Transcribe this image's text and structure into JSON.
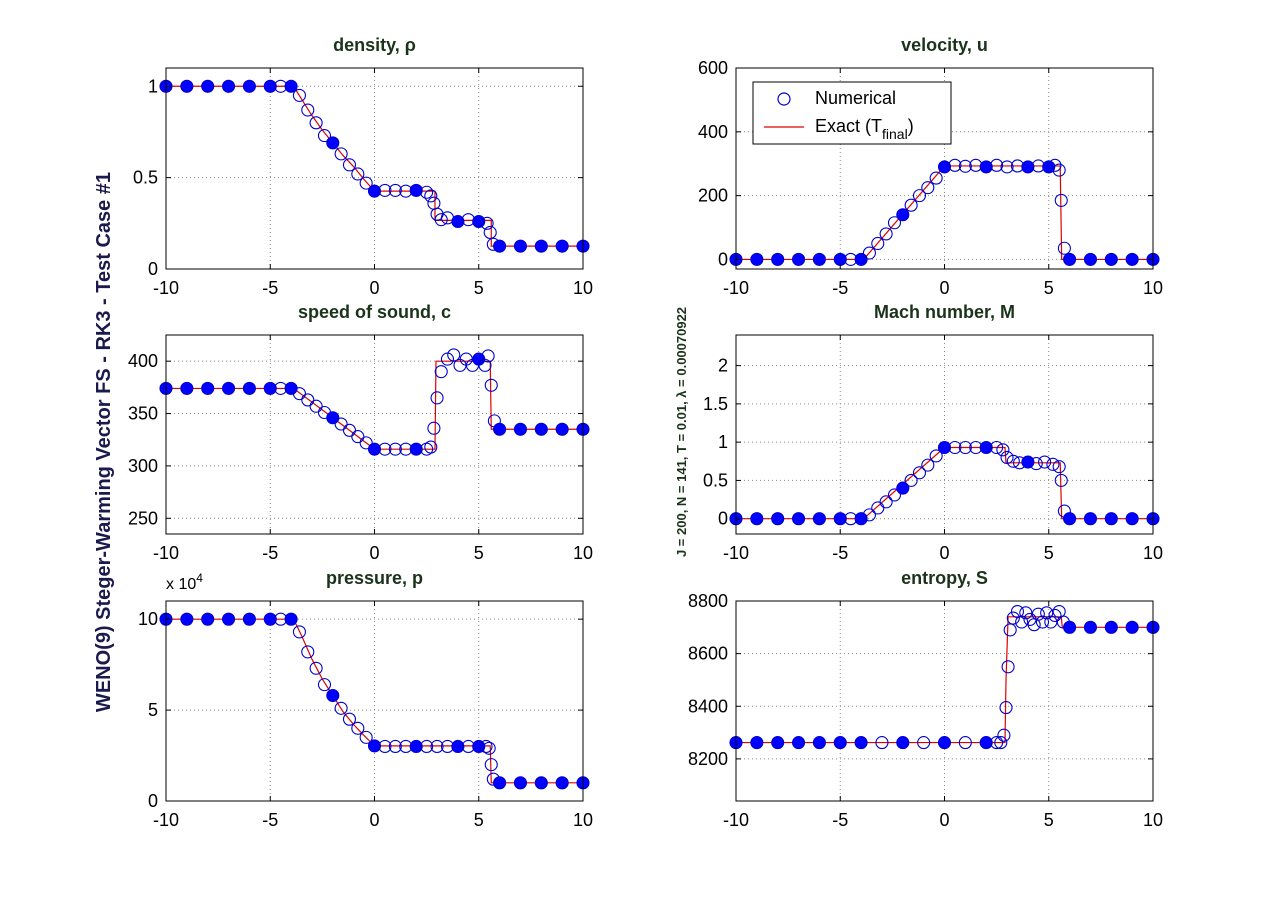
{
  "figure": {
    "suptitle": "WENO(9) Steger-Warming Vector FS - RK3 - Test Case #1",
    "info": "J = 200,  N = 141,  T = 0.01,  λ = 0.00070922",
    "colors": {
      "background": "#ffffff",
      "marker": "#0000cc",
      "marker_fill": "#0000ff",
      "exact_line": "#e00000",
      "axes": "#000000",
      "grid": "#8c8c8c",
      "title": "#1a331a",
      "suptitle": "#1a1a4d"
    }
  },
  "legend": {
    "numerical": "Numerical",
    "exact_prefix": "Exact (T",
    "exact_sub": "final",
    "exact_suffix": ")"
  },
  "chart_data": [
    {
      "id": "density",
      "type": "line",
      "title": "density, ρ",
      "xlim": [
        -10,
        10
      ],
      "ylim": [
        0,
        1.1
      ],
      "xticks": [
        -10,
        -5,
        0,
        5,
        10
      ],
      "xtick_labels": [
        "-10",
        "-5",
        "0",
        "5",
        "10"
      ],
      "yticks": [
        0,
        0.5,
        1
      ],
      "ytick_labels": [
        "0",
        "0.5",
        "1"
      ],
      "grid": true,
      "series": [
        {
          "name": "Exact (Tfinal)",
          "style": "line",
          "x": [
            -10,
            -3.88,
            -3.5,
            -3,
            -2.5,
            -2,
            -1.5,
            -1,
            -0.5,
            0,
            2.9,
            2.9,
            5.6,
            5.6,
            10
          ],
          "y": [
            1,
            1,
            0.93,
            0.84,
            0.76,
            0.69,
            0.62,
            0.56,
            0.49,
            0.426,
            0.426,
            0.266,
            0.266,
            0.125,
            0.125
          ]
        },
        {
          "name": "Numerical",
          "style": "markers",
          "x": [
            -10,
            -9,
            -8,
            -7,
            -6,
            -5,
            -4.5,
            -4,
            -3.6,
            -3.2,
            -2.8,
            -2.4,
            -2,
            -1.6,
            -1.2,
            -0.8,
            -0.4,
            0,
            0.5,
            1,
            1.5,
            2,
            2.5,
            2.7,
            2.85,
            3,
            3.2,
            3.5,
            4,
            4.5,
            5,
            5.4,
            5.55,
            5.7,
            6,
            7,
            8,
            9,
            10
          ],
          "y": [
            1,
            1,
            1,
            1,
            1,
            1,
            1,
            1,
            0.95,
            0.87,
            0.8,
            0.73,
            0.69,
            0.63,
            0.57,
            0.52,
            0.47,
            0.426,
            0.43,
            0.43,
            0.426,
            0.43,
            0.42,
            0.4,
            0.36,
            0.3,
            0.27,
            0.28,
            0.26,
            0.27,
            0.26,
            0.25,
            0.2,
            0.135,
            0.125,
            0.125,
            0.125,
            0.125,
            0.125
          ]
        }
      ]
    },
    {
      "id": "velocity",
      "type": "line",
      "title": "velocity, u",
      "xlim": [
        -10,
        10
      ],
      "ylim": [
        -30,
        600
      ],
      "xticks": [
        -10,
        -5,
        0,
        5,
        10
      ],
      "xtick_labels": [
        "-10",
        "-5",
        "0",
        "5",
        "10"
      ],
      "yticks": [
        0,
        200,
        400,
        600
      ],
      "ytick_labels": [
        "0",
        "200",
        "400",
        "600"
      ],
      "grid": true,
      "legend": "top-left",
      "series": [
        {
          "name": "Exact (Tfinal)",
          "style": "line",
          "x": [
            -10,
            -3.88,
            0,
            5.55,
            5.62,
            10
          ],
          "y": [
            0,
            0,
            293,
            293,
            0,
            0
          ]
        },
        {
          "name": "Numerical",
          "style": "markers",
          "x": [
            -10,
            -9,
            -8,
            -7,
            -6,
            -5,
            -4.5,
            -4,
            -3.6,
            -3.2,
            -2.8,
            -2.4,
            -2,
            -1.6,
            -1.2,
            -0.8,
            -0.4,
            0,
            0.5,
            1,
            1.5,
            2,
            2.5,
            3,
            3.5,
            4,
            4.5,
            5,
            5.3,
            5.5,
            5.6,
            5.75,
            6,
            7,
            8,
            9,
            10
          ],
          "y": [
            0,
            0,
            0,
            0,
            0,
            0,
            0,
            0,
            20,
            50,
            80,
            115,
            140,
            170,
            200,
            225,
            255,
            290,
            295,
            292,
            295,
            290,
            295,
            290,
            293,
            290,
            293,
            290,
            295,
            280,
            185,
            35,
            0,
            0,
            0,
            0,
            0
          ]
        }
      ]
    },
    {
      "id": "speed_of_sound",
      "type": "line",
      "title": "speed of sound, c",
      "xlim": [
        -10,
        10
      ],
      "ylim": [
        235,
        425
      ],
      "xticks": [
        -10,
        -5,
        0,
        5,
        10
      ],
      "xtick_labels": [
        "-10",
        "-5",
        "0",
        "5",
        "10"
      ],
      "yticks": [
        250,
        300,
        350,
        400
      ],
      "ytick_labels": [
        "250",
        "300",
        "350",
        "400"
      ],
      "grid": true,
      "series": [
        {
          "name": "Exact (Tfinal)",
          "style": "line",
          "x": [
            -10,
            -3.88,
            -2,
            0,
            2.9,
            2.95,
            5.55,
            5.6,
            10
          ],
          "y": [
            374,
            374,
            346,
            316,
            316,
            400,
            400,
            335,
            335
          ]
        },
        {
          "name": "Numerical",
          "style": "markers",
          "x": [
            -10,
            -9,
            -8,
            -7,
            -6,
            -5,
            -4.5,
            -4,
            -3.6,
            -3.2,
            -2.8,
            -2.4,
            -2,
            -1.6,
            -1.2,
            -0.8,
            -0.4,
            0,
            0.5,
            1,
            1.5,
            2,
            2.5,
            2.7,
            2.85,
            3,
            3.2,
            3.5,
            3.8,
            4.1,
            4.4,
            4.7,
            5,
            5.3,
            5.45,
            5.6,
            5.75,
            6,
            7,
            8,
            9,
            10
          ],
          "y": [
            374,
            374,
            374,
            374,
            374,
            374,
            374,
            374,
            369,
            363,
            357,
            351,
            346,
            340,
            334,
            328,
            322,
            316,
            316,
            316,
            316,
            316,
            316,
            318,
            336,
            365,
            390,
            402,
            406,
            396,
            402,
            396,
            402,
            396,
            405,
            377,
            343,
            335,
            335,
            335,
            335,
            335
          ]
        }
      ]
    },
    {
      "id": "mach_number",
      "type": "line",
      "title": "Mach number, M",
      "xlim": [
        -10,
        10
      ],
      "ylim": [
        -0.2,
        2.4
      ],
      "xticks": [
        -10,
        -5,
        0,
        5,
        10
      ],
      "xtick_labels": [
        "-10",
        "-5",
        "0",
        "5",
        "10"
      ],
      "yticks": [
        0,
        0.5,
        1,
        1.5,
        2
      ],
      "ytick_labels": [
        "0",
        "0.5",
        "1",
        "1.5",
        "2"
      ],
      "grid": true,
      "series": [
        {
          "name": "Exact (Tfinal)",
          "style": "line",
          "x": [
            -10,
            -3.88,
            0,
            2.9,
            2.95,
            5.55,
            5.62,
            10
          ],
          "y": [
            0,
            0,
            0.93,
            0.93,
            0.73,
            0.73,
            0,
            0
          ]
        },
        {
          "name": "Numerical",
          "style": "markers",
          "x": [
            -10,
            -9,
            -8,
            -7,
            -6,
            -5,
            -4.5,
            -4,
            -3.6,
            -3.2,
            -2.8,
            -2.4,
            -2,
            -1.6,
            -1.2,
            -0.8,
            -0.4,
            0,
            0.5,
            1,
            1.5,
            2,
            2.5,
            2.8,
            3,
            3.3,
            3.6,
            4,
            4.4,
            4.8,
            5.2,
            5.5,
            5.6,
            5.75,
            6,
            7,
            8,
            9,
            10
          ],
          "y": [
            0,
            0,
            0,
            0,
            0,
            0,
            0,
            0,
            0.05,
            0.14,
            0.22,
            0.31,
            0.4,
            0.5,
            0.6,
            0.7,
            0.82,
            0.93,
            0.93,
            0.93,
            0.93,
            0.93,
            0.93,
            0.9,
            0.8,
            0.75,
            0.73,
            0.74,
            0.72,
            0.74,
            0.71,
            0.68,
            0.5,
            0.1,
            0,
            0,
            0,
            0,
            0
          ]
        }
      ]
    },
    {
      "id": "pressure",
      "type": "line",
      "title": "pressure, p",
      "exponent_label": "x 10",
      "exponent_power": "4",
      "xlim": [
        -10,
        10
      ],
      "ylim": [
        0,
        11
      ],
      "xticks": [
        -10,
        -5,
        0,
        5,
        10
      ],
      "xtick_labels": [
        "-10",
        "-5",
        "0",
        "5",
        "10"
      ],
      "yticks": [
        0,
        5,
        10
      ],
      "ytick_labels": [
        "0",
        "5",
        "10"
      ],
      "grid": true,
      "series": [
        {
          "name": "Exact (Tfinal)",
          "style": "line",
          "x": [
            -10,
            -3.88,
            -3.5,
            -3,
            -2.5,
            -2,
            -1.5,
            -1,
            -0.5,
            0,
            5.55,
            5.6,
            10
          ],
          "y": [
            10,
            10,
            9.1,
            7.8,
            6.7,
            5.8,
            4.9,
            4.2,
            3.6,
            3.03,
            3.03,
            1.0,
            1.0
          ]
        },
        {
          "name": "Numerical",
          "style": "markers",
          "x": [
            -10,
            -9,
            -8,
            -7,
            -6,
            -5,
            -4.5,
            -4,
            -3.6,
            -3.2,
            -2.8,
            -2.4,
            -2,
            -1.6,
            -1.2,
            -0.8,
            -0.4,
            0,
            0.5,
            1,
            1.5,
            2,
            2.5,
            3,
            3.5,
            4,
            4.5,
            5,
            5.35,
            5.5,
            5.6,
            5.7,
            6,
            7,
            8,
            9,
            10
          ],
          "y": [
            10,
            10,
            10,
            10,
            10,
            10,
            10,
            10,
            9.3,
            8.2,
            7.3,
            6.4,
            5.8,
            5.1,
            4.5,
            4.0,
            3.5,
            3.03,
            3.0,
            3.0,
            3.0,
            3.0,
            3.0,
            3.0,
            3.0,
            3.0,
            3.0,
            3.0,
            3.0,
            2.9,
            2.0,
            1.2,
            1.0,
            1.0,
            1.0,
            1.0,
            1.0
          ]
        }
      ]
    },
    {
      "id": "entropy",
      "type": "line",
      "title": "entropy, S",
      "xlim": [
        -10,
        10
      ],
      "ylim": [
        8040,
        8800
      ],
      "xticks": [
        -10,
        -5,
        0,
        5,
        10
      ],
      "xtick_labels": [
        "-10",
        "-5",
        "0",
        "5",
        "10"
      ],
      "yticks": [
        8200,
        8400,
        8600,
        8800
      ],
      "ytick_labels": [
        "8200",
        "8400",
        "8600",
        "8800"
      ],
      "grid": true,
      "series": [
        {
          "name": "Exact (Tfinal)",
          "style": "line",
          "x": [
            -10,
            2.9,
            2.95,
            3.05,
            5.6,
            5.65,
            10
          ],
          "y": [
            8262,
            8262,
            8500,
            8740,
            8740,
            8700,
            8700
          ]
        },
        {
          "name": "Numerical",
          "style": "markers",
          "x": [
            -10,
            -9,
            -8,
            -7,
            -6,
            -5,
            -4,
            -3,
            -2,
            -1,
            0,
            1,
            2,
            2.5,
            2.7,
            2.85,
            2.95,
            3.05,
            3.15,
            3.3,
            3.5,
            3.7,
            3.9,
            4.1,
            4.3,
            4.5,
            4.7,
            4.9,
            5.1,
            5.3,
            5.5,
            5.7,
            6,
            7,
            8,
            9,
            10
          ],
          "y": [
            8262,
            8262,
            8262,
            8262,
            8262,
            8262,
            8262,
            8262,
            8262,
            8262,
            8262,
            8262,
            8262,
            8262,
            8262,
            8290,
            8395,
            8550,
            8690,
            8735,
            8760,
            8720,
            8755,
            8730,
            8710,
            8750,
            8720,
            8755,
            8720,
            8745,
            8760,
            8720,
            8700,
            8700,
            8700,
            8700,
            8700
          ]
        }
      ]
    }
  ]
}
